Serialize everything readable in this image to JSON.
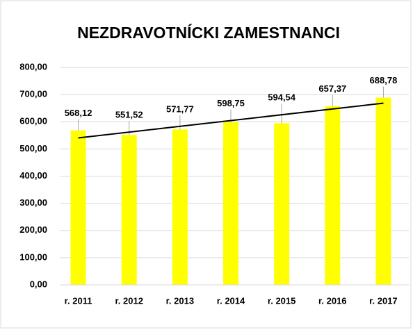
{
  "chart_data": {
    "type": "bar",
    "title": "NEZDRAVOTNÍCKI ZAMESTNANCI",
    "categories": [
      "r. 2011",
      "r. 2012",
      "r. 2013",
      "r. 2014",
      "r. 2015",
      "r. 2016",
      "r. 2017"
    ],
    "values": [
      568.12,
      551.52,
      571.77,
      598.75,
      594.54,
      657.37,
      688.78
    ],
    "value_labels": [
      "568,12",
      "551,52",
      "571,77",
      "598,75",
      "594,54",
      "657,37",
      "688,78"
    ],
    "color": "#ffff00",
    "ylim": [
      0,
      800
    ],
    "yticks": [
      {
        "value": 0,
        "label": "0,00"
      },
      {
        "value": 100,
        "label": "100,00"
      },
      {
        "value": 200,
        "label": "200,00"
      },
      {
        "value": 300,
        "label": "300,00"
      },
      {
        "value": 400,
        "label": "400,00"
      },
      {
        "value": 500,
        "label": "500,00"
      },
      {
        "value": 600,
        "label": "600,00"
      },
      {
        "value": 700,
        "label": "700,00"
      },
      {
        "value": 800,
        "label": "800,00"
      }
    ],
    "grid": true,
    "trendline": true
  }
}
